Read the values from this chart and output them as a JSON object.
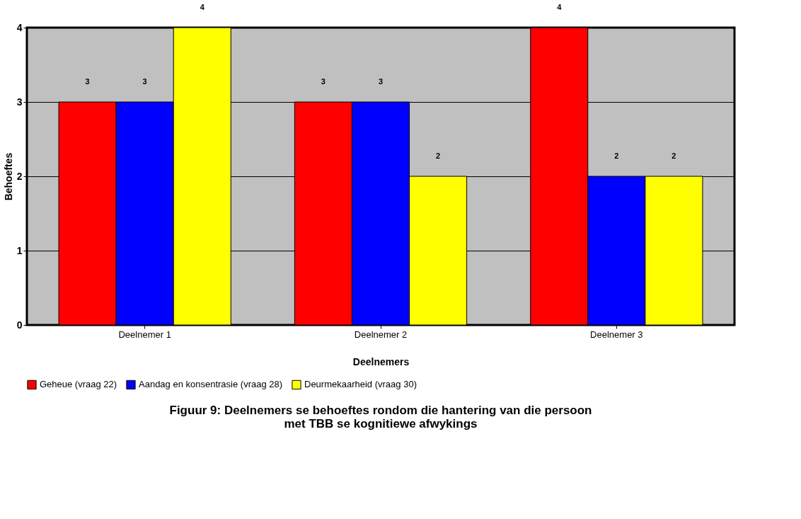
{
  "chart_data": {
    "type": "bar",
    "title": "Figuur 9:  Deelnemers se behoeftes rondom die hantering van die persoon met TBB se kognitiewe afwykings",
    "xlabel": "Deelnemers",
    "ylabel": "Behoeftes",
    "categories": [
      "Deelnemer 1",
      "Deelnemer 2",
      "Deelnemer 3"
    ],
    "series": [
      {
        "name": "Geheue (vraag 22)",
        "color": "#ff0000",
        "values": [
          3,
          3,
          4
        ]
      },
      {
        "name": "Aandag en konsentrasie (vraag 28)",
        "color": "#0000ff",
        "values": [
          3,
          3,
          2
        ]
      },
      {
        "name": "Deurmekaarheid (vraag 30)",
        "color": "#ffff00",
        "values": [
          4,
          2,
          2
        ]
      }
    ],
    "ylim": [
      0,
      4
    ],
    "yticks": [
      0,
      1,
      2,
      3,
      4
    ],
    "grid": "y",
    "legend": "bottom",
    "data_labels": true
  }
}
